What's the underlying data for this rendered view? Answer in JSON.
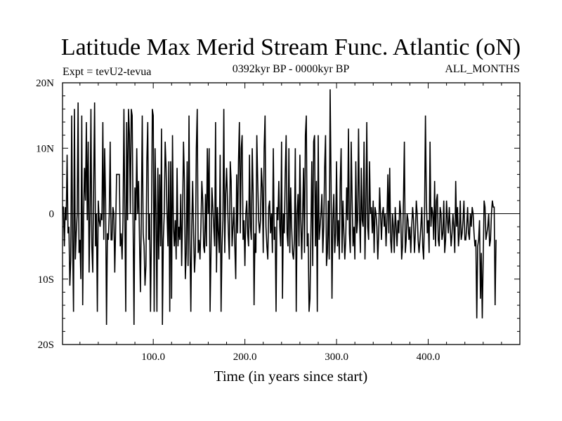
{
  "chart_data": {
    "type": "line",
    "title": "Latitude Max Merid Stream Func. Atlantic (oN)",
    "subtitle_left": "Expt = tevU2-tevua",
    "subtitle_center": "0392kyr BP - 0000kyr BP",
    "subtitle_right": "ALL_MONTHS",
    "xlabel": "Time (in years since start)",
    "ylabel": "",
    "xlim": [
      1,
      500
    ],
    "ylim": [
      -20,
      20
    ],
    "x_ticks": [
      100,
      200,
      300,
      400
    ],
    "x_tick_labels": [
      "100.0",
      "200.0",
      "300.0",
      "400.0"
    ],
    "y_ticks": [
      20,
      10,
      0,
      -10,
      -20
    ],
    "y_tick_labels": [
      "20N",
      "10N",
      "0",
      "10S",
      "20S"
    ],
    "grid": false,
    "zero_line": true,
    "series_color": "#000000",
    "x_start": 1,
    "x_step": 1,
    "values": [
      1,
      1,
      -5,
      1,
      -1,
      9,
      -3,
      -2,
      -11,
      -7,
      15,
      -4,
      -15,
      16,
      -7,
      -3,
      0,
      17,
      -6,
      -4,
      -10,
      15,
      -14,
      0,
      7,
      2,
      14,
      -1,
      11,
      -9,
      0,
      16,
      -5,
      -9,
      5,
      17,
      -5,
      0,
      -15,
      2,
      -1,
      -2,
      0,
      -1,
      14,
      -4,
      10,
      2,
      -17,
      -3,
      -4,
      0,
      11,
      -4,
      -4,
      1,
      0,
      -9,
      -2,
      6,
      6,
      6,
      6,
      -5,
      -3,
      -7,
      -1,
      16,
      0,
      -15,
      14,
      -1,
      16,
      12,
      0,
      16,
      15,
      -1,
      -17,
      4,
      -1,
      10,
      0,
      5,
      -4,
      -12,
      0,
      15,
      -3,
      -5,
      -11,
      -8,
      8,
      14,
      -4,
      0,
      -15,
      -3,
      16,
      15,
      -15,
      10,
      0,
      -15,
      7,
      -7,
      6,
      -5,
      13,
      -17,
      -4,
      0,
      11,
      7,
      0,
      -5,
      8,
      -15,
      8,
      -13,
      12,
      -2,
      -5,
      -1,
      -7,
      7,
      -5,
      -2,
      -4,
      3,
      -8,
      0,
      11,
      5,
      -10,
      -6,
      8,
      -8,
      15,
      -4,
      -15,
      -2,
      5,
      -3,
      -9,
      -6,
      10,
      16,
      -6,
      -4,
      -7,
      -2,
      5,
      2,
      -5,
      -6,
      3,
      -5,
      10,
      0,
      10,
      -15,
      -6,
      4,
      1,
      -2,
      -5,
      14,
      -9,
      1,
      -3,
      -6,
      9,
      -15,
      -5,
      -1,
      16,
      -6,
      3,
      7,
      2,
      -3,
      -7,
      8,
      5,
      -5,
      -2,
      1,
      -5,
      -10,
      6,
      -3,
      8,
      14,
      -3,
      10,
      12,
      -4,
      -1,
      -8,
      0,
      2,
      -3,
      -5,
      9,
      -2,
      -4,
      10,
      3,
      -14,
      -3,
      -6,
      12,
      5,
      -1,
      -3,
      -1,
      7,
      4,
      -6,
      10,
      15,
      -2,
      -5,
      -7,
      1,
      2,
      -3,
      0,
      -6,
      10,
      -4,
      -2,
      -15,
      1,
      -1,
      5,
      -2,
      -5,
      11,
      -13,
      0,
      -3,
      6,
      12,
      -3,
      -5,
      10,
      -6,
      4,
      -2,
      -6,
      -7,
      -4,
      10,
      -15,
      0,
      3,
      -5,
      9,
      -1,
      -7,
      0,
      7,
      -6,
      12,
      15,
      -5,
      -3,
      -15,
      -13,
      -3,
      8,
      -8,
      11,
      12,
      -5,
      5,
      -15,
      12,
      -4,
      -2,
      0,
      3,
      -6,
      -2,
      7,
      12,
      -8,
      -6,
      2,
      -7,
      19,
      5,
      -13,
      -1,
      3,
      -6,
      -3,
      8,
      -5,
      -1,
      -7,
      5,
      10,
      -6,
      2,
      -3,
      -7,
      -4,
      4,
      -1,
      13,
      -3,
      -6,
      11,
      2,
      -5,
      -2,
      -7,
      8,
      -3,
      -1,
      13,
      0,
      -6,
      7,
      -1,
      -2,
      11,
      -7,
      1,
      14,
      -2,
      -4,
      8,
      0,
      1,
      -3,
      2,
      -6,
      1,
      0,
      -2,
      -7,
      -3,
      4,
      0,
      -4,
      0,
      1,
      -2,
      0,
      -5,
      -1,
      6,
      -3,
      7,
      -4,
      -6,
      0,
      -2,
      -6,
      1,
      -2,
      -5,
      -1,
      -3,
      2,
      0,
      -7,
      -5,
      2,
      11,
      -6,
      -4,
      0,
      -1,
      -4,
      -2,
      -6,
      -2,
      1,
      -1,
      -6,
      -3,
      2,
      0,
      -4,
      -6,
      -4,
      -2,
      1,
      -5,
      -7,
      0,
      15,
      2,
      -3,
      -1,
      -6,
      11,
      -2,
      1,
      0,
      -4,
      5,
      -5,
      2,
      3,
      -4,
      -5,
      1,
      0,
      -4,
      -3,
      2,
      -6,
      -4,
      2,
      -1,
      -3,
      1,
      -2,
      -5,
      -3,
      0,
      -2,
      -6,
      5,
      -2,
      1,
      -5,
      -3,
      2,
      -4,
      -3,
      -1,
      2,
      -4,
      -4,
      -2,
      1,
      -3,
      -4,
      0,
      -2,
      1,
      0,
      -3,
      -5,
      -4,
      -16,
      -5,
      -4,
      -1,
      -13,
      -6,
      -16,
      -7,
      2,
      1,
      -4,
      -3,
      -2,
      0,
      -5,
      -4,
      0,
      2,
      1,
      1,
      -14,
      -4
    ]
  }
}
